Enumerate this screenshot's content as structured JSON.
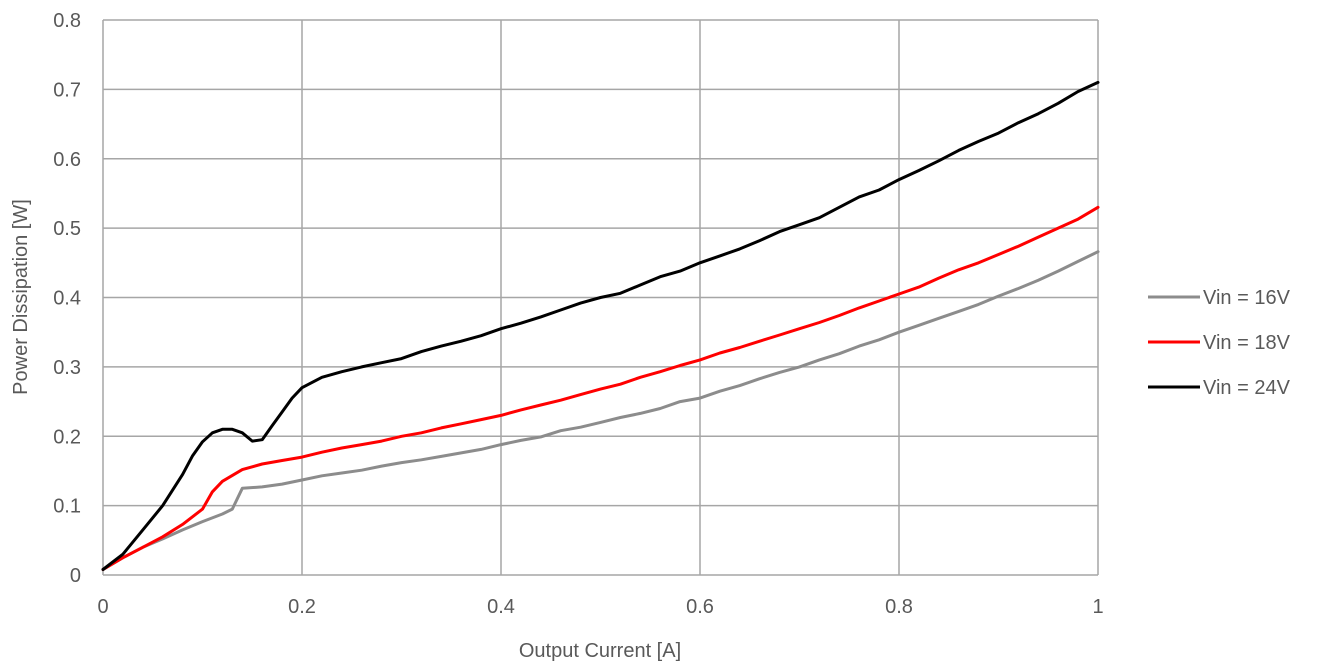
{
  "chart_data": {
    "type": "line",
    "title": "",
    "xlabel": "Output Current [A]",
    "ylabel": "Power Dissipation [W]",
    "xlim": [
      0,
      1
    ],
    "ylim": [
      0,
      0.8
    ],
    "x_ticks": [
      0,
      0.2,
      0.4,
      0.6,
      0.8,
      1
    ],
    "x_tick_labels": [
      "0",
      "0.2",
      "0.4",
      "0.6",
      "0.8",
      "1"
    ],
    "y_ticks": [
      0,
      0.1,
      0.2,
      0.3,
      0.4,
      0.5,
      0.6,
      0.7,
      0.8
    ],
    "y_tick_labels": [
      "0",
      "0.1",
      "0.2",
      "0.3",
      "0.4",
      "0.5",
      "0.6",
      "0.7",
      "0.8"
    ],
    "grid": true,
    "legend_position": "right",
    "series": [
      {
        "name": "Vin = 16V",
        "color": "#8c8c8c",
        "points": [
          [
            0,
            0.008
          ],
          [
            0.02,
            0.025
          ],
          [
            0.04,
            0.04
          ],
          [
            0.06,
            0.052
          ],
          [
            0.08,
            0.065
          ],
          [
            0.1,
            0.077
          ],
          [
            0.12,
            0.088
          ],
          [
            0.13,
            0.095
          ],
          [
            0.14,
            0.125
          ],
          [
            0.16,
            0.127
          ],
          [
            0.18,
            0.131
          ],
          [
            0.2,
            0.137
          ],
          [
            0.22,
            0.143
          ],
          [
            0.24,
            0.147
          ],
          [
            0.26,
            0.151
          ],
          [
            0.28,
            0.157
          ],
          [
            0.3,
            0.162
          ],
          [
            0.32,
            0.166
          ],
          [
            0.34,
            0.171
          ],
          [
            0.36,
            0.176
          ],
          [
            0.38,
            0.181
          ],
          [
            0.4,
            0.188
          ],
          [
            0.42,
            0.194
          ],
          [
            0.44,
            0.199
          ],
          [
            0.46,
            0.208
          ],
          [
            0.48,
            0.213
          ],
          [
            0.5,
            0.22
          ],
          [
            0.52,
            0.227
          ],
          [
            0.54,
            0.233
          ],
          [
            0.56,
            0.24
          ],
          [
            0.58,
            0.25
          ],
          [
            0.6,
            0.255
          ],
          [
            0.62,
            0.265
          ],
          [
            0.64,
            0.273
          ],
          [
            0.66,
            0.283
          ],
          [
            0.68,
            0.292
          ],
          [
            0.7,
            0.3
          ],
          [
            0.72,
            0.31
          ],
          [
            0.74,
            0.319
          ],
          [
            0.76,
            0.33
          ],
          [
            0.78,
            0.339
          ],
          [
            0.8,
            0.35
          ],
          [
            0.82,
            0.36
          ],
          [
            0.84,
            0.37
          ],
          [
            0.86,
            0.38
          ],
          [
            0.88,
            0.39
          ],
          [
            0.9,
            0.402
          ],
          [
            0.92,
            0.413
          ],
          [
            0.94,
            0.425
          ],
          [
            0.96,
            0.438
          ],
          [
            0.98,
            0.452
          ],
          [
            1,
            0.466
          ]
        ]
      },
      {
        "name": "Vin = 18V",
        "color": "#ff0000",
        "points": [
          [
            0,
            0.008
          ],
          [
            0.02,
            0.025
          ],
          [
            0.04,
            0.04
          ],
          [
            0.06,
            0.055
          ],
          [
            0.08,
            0.073
          ],
          [
            0.1,
            0.095
          ],
          [
            0.11,
            0.12
          ],
          [
            0.12,
            0.135
          ],
          [
            0.14,
            0.152
          ],
          [
            0.16,
            0.16
          ],
          [
            0.18,
            0.165
          ],
          [
            0.2,
            0.17
          ],
          [
            0.22,
            0.177
          ],
          [
            0.24,
            0.183
          ],
          [
            0.26,
            0.188
          ],
          [
            0.28,
            0.193
          ],
          [
            0.3,
            0.2
          ],
          [
            0.32,
            0.205
          ],
          [
            0.34,
            0.212
          ],
          [
            0.36,
            0.218
          ],
          [
            0.38,
            0.224
          ],
          [
            0.4,
            0.23
          ],
          [
            0.42,
            0.238
          ],
          [
            0.44,
            0.245
          ],
          [
            0.46,
            0.252
          ],
          [
            0.48,
            0.26
          ],
          [
            0.5,
            0.268
          ],
          [
            0.52,
            0.275
          ],
          [
            0.54,
            0.285
          ],
          [
            0.56,
            0.293
          ],
          [
            0.58,
            0.302
          ],
          [
            0.6,
            0.31
          ],
          [
            0.62,
            0.32
          ],
          [
            0.64,
            0.328
          ],
          [
            0.66,
            0.337
          ],
          [
            0.68,
            0.346
          ],
          [
            0.7,
            0.355
          ],
          [
            0.72,
            0.364
          ],
          [
            0.74,
            0.374
          ],
          [
            0.76,
            0.385
          ],
          [
            0.78,
            0.395
          ],
          [
            0.8,
            0.405
          ],
          [
            0.82,
            0.415
          ],
          [
            0.84,
            0.428
          ],
          [
            0.86,
            0.44
          ],
          [
            0.88,
            0.45
          ],
          [
            0.9,
            0.462
          ],
          [
            0.92,
            0.474
          ],
          [
            0.94,
            0.487
          ],
          [
            0.96,
            0.5
          ],
          [
            0.98,
            0.513
          ],
          [
            1,
            0.53
          ]
        ]
      },
      {
        "name": "Vin = 24V",
        "color": "#000000",
        "points": [
          [
            0,
            0.008
          ],
          [
            0.02,
            0.03
          ],
          [
            0.04,
            0.065
          ],
          [
            0.06,
            0.1
          ],
          [
            0.08,
            0.145
          ],
          [
            0.09,
            0.172
          ],
          [
            0.1,
            0.192
          ],
          [
            0.11,
            0.205
          ],
          [
            0.12,
            0.21
          ],
          [
            0.13,
            0.21
          ],
          [
            0.14,
            0.205
          ],
          [
            0.15,
            0.193
          ],
          [
            0.16,
            0.195
          ],
          [
            0.17,
            0.215
          ],
          [
            0.18,
            0.235
          ],
          [
            0.19,
            0.255
          ],
          [
            0.2,
            0.27
          ],
          [
            0.22,
            0.285
          ],
          [
            0.24,
            0.293
          ],
          [
            0.26,
            0.3
          ],
          [
            0.28,
            0.306
          ],
          [
            0.3,
            0.312
          ],
          [
            0.32,
            0.322
          ],
          [
            0.34,
            0.33
          ],
          [
            0.36,
            0.337
          ],
          [
            0.38,
            0.345
          ],
          [
            0.4,
            0.355
          ],
          [
            0.42,
            0.363
          ],
          [
            0.44,
            0.372
          ],
          [
            0.46,
            0.382
          ],
          [
            0.48,
            0.392
          ],
          [
            0.5,
            0.4
          ],
          [
            0.52,
            0.406
          ],
          [
            0.54,
            0.418
          ],
          [
            0.56,
            0.43
          ],
          [
            0.58,
            0.438
          ],
          [
            0.6,
            0.45
          ],
          [
            0.62,
            0.46
          ],
          [
            0.64,
            0.47
          ],
          [
            0.66,
            0.482
          ],
          [
            0.68,
            0.495
          ],
          [
            0.7,
            0.505
          ],
          [
            0.72,
            0.515
          ],
          [
            0.74,
            0.53
          ],
          [
            0.76,
            0.545
          ],
          [
            0.78,
            0.555
          ],
          [
            0.8,
            0.57
          ],
          [
            0.82,
            0.583
          ],
          [
            0.84,
            0.597
          ],
          [
            0.86,
            0.612
          ],
          [
            0.88,
            0.625
          ],
          [
            0.9,
            0.637
          ],
          [
            0.92,
            0.652
          ],
          [
            0.94,
            0.665
          ],
          [
            0.96,
            0.68
          ],
          [
            0.98,
            0.697
          ],
          [
            1,
            0.71
          ]
        ]
      }
    ]
  }
}
